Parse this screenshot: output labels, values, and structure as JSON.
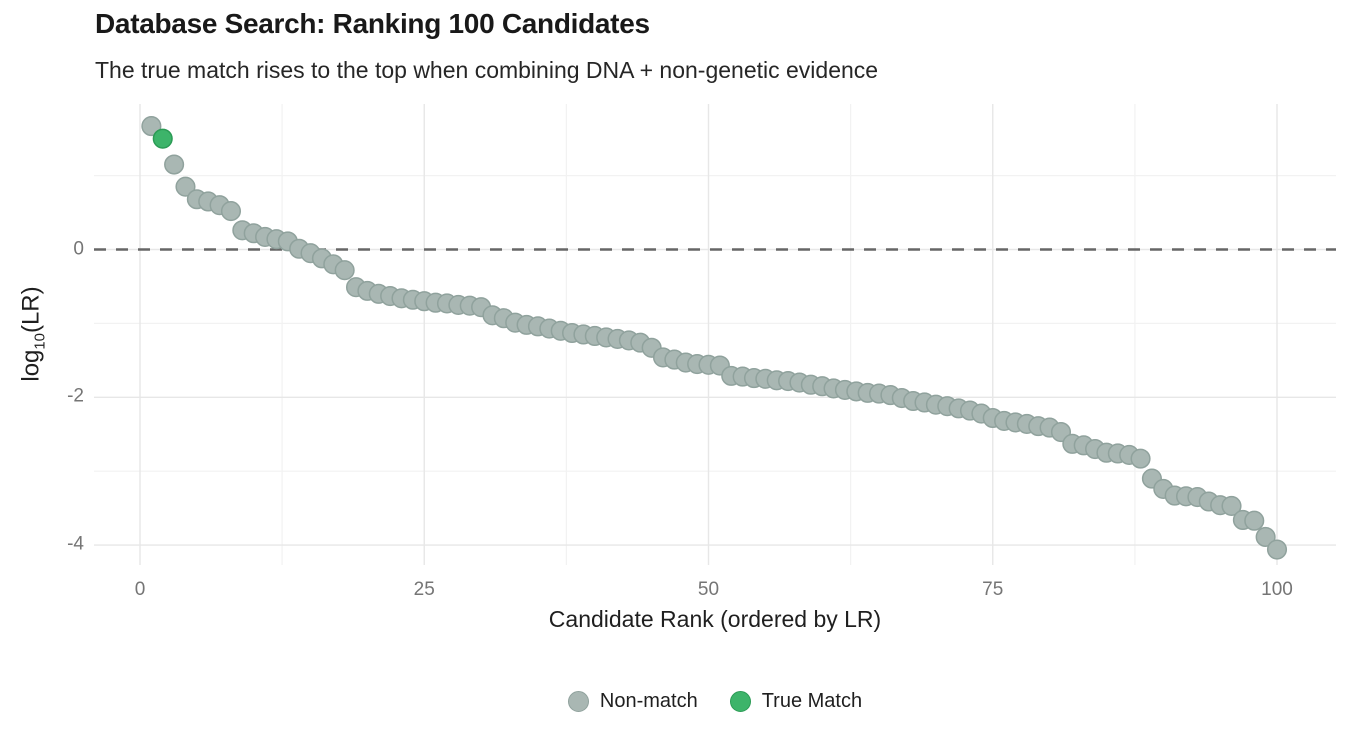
{
  "chart_data": {
    "type": "scatter",
    "title": "Database Search: Ranking 100 Candidates",
    "subtitle": "The true match rises to the top when combining DNA + non-genetic evidence",
    "xlabel": "Candidate Rank (ordered by LR)",
    "ylabel": "log10(LR)",
    "ylabel_rich": {
      "pre": "log",
      "sub": "10",
      "post": "(LR)"
    },
    "x_ticks": {
      "values": [
        0,
        25,
        50,
        75,
        100
      ],
      "labels": [
        "0",
        "25",
        "50",
        "75",
        "100"
      ]
    },
    "x_minor_ticks": [
      12.5,
      37.5,
      62.5,
      87.5
    ],
    "y_ticks": {
      "values": [
        0,
        -2,
        -4
      ],
      "labels": [
        "0",
        "-2",
        "-4"
      ]
    },
    "y_minor_ticks": [
      1,
      -1,
      -3
    ],
    "xlim": [
      -4,
      105
    ],
    "ylim": [
      -4.3,
      2.0
    ],
    "grid": "on",
    "legend_position": "bottom",
    "reference_line": {
      "y": 0,
      "style": "dashed"
    },
    "n_candidates": 100,
    "true_match_rank": 2,
    "series": [
      {
        "name": "Non-match",
        "role": "non_match"
      },
      {
        "name": "True Match",
        "role": "true_match"
      }
    ],
    "log10_lr_by_rank": [
      1.67,
      1.5,
      1.15,
      0.85,
      0.68,
      0.65,
      0.6,
      0.52,
      0.26,
      0.22,
      0.17,
      0.14,
      0.11,
      0.01,
      -0.05,
      -0.12,
      -0.2,
      -0.28,
      -0.51,
      -0.56,
      -0.6,
      -0.63,
      -0.66,
      -0.68,
      -0.7,
      -0.72,
      -0.73,
      -0.75,
      -0.76,
      -0.78,
      -0.89,
      -0.93,
      -0.99,
      -1.02,
      -1.04,
      -1.07,
      -1.1,
      -1.13,
      -1.15,
      -1.17,
      -1.19,
      -1.21,
      -1.23,
      -1.26,
      -1.33,
      -1.46,
      -1.49,
      -1.53,
      -1.55,
      -1.56,
      -1.57,
      -1.71,
      -1.72,
      -1.74,
      -1.75,
      -1.77,
      -1.78,
      -1.8,
      -1.83,
      -1.85,
      -1.88,
      -1.9,
      -1.92,
      -1.94,
      -1.95,
      -1.97,
      -2.01,
      -2.05,
      -2.07,
      -2.1,
      -2.12,
      -2.15,
      -2.18,
      -2.22,
      -2.28,
      -2.32,
      -2.34,
      -2.36,
      -2.39,
      -2.41,
      -2.47,
      -2.63,
      -2.65,
      -2.7,
      -2.75,
      -2.76,
      -2.78,
      -2.83,
      -3.1,
      -3.24,
      -3.33,
      -3.34,
      -3.35,
      -3.41,
      -3.46,
      -3.47,
      -3.66,
      -3.67,
      -3.89,
      -4.06
    ]
  },
  "legend": {
    "position": "bottom",
    "items": [
      {
        "label": "Non-match"
      },
      {
        "label": "True Match"
      }
    ]
  },
  "colors": {
    "non_match_fill": "#a9b7b3",
    "non_match_stroke": "#90a29d",
    "true_match_fill": "#3db46a",
    "true_match_stroke": "#2b9b55",
    "reference_line": "#666666",
    "grid_major": "#e7e7e7",
    "grid_minor": "#f2f2f2",
    "title_text": "#191919",
    "axis_tick_text": "#757575",
    "axis_title_text": "#1f1f1f"
  }
}
